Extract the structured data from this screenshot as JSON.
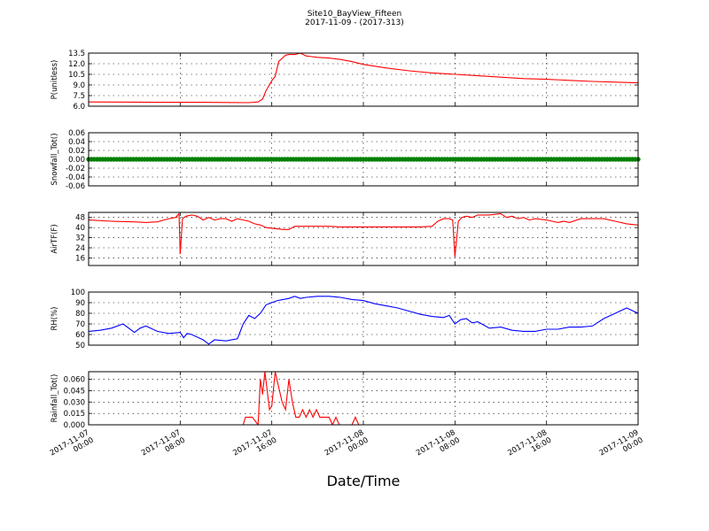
{
  "chart_data": {
    "type": "line",
    "title": "Site10_BayView_Fifteen",
    "subtitle": "2017-11-09 - (2017-313)",
    "xlabel": "Date/Time",
    "x_ticks": [
      {
        "hours": 0,
        "label": [
          "2017-11-07",
          "00:00"
        ]
      },
      {
        "hours": 8,
        "label": [
          "2017-11-07",
          "08:00"
        ]
      },
      {
        "hours": 16,
        "label": [
          "2017-11-07",
          "16:00"
        ]
      },
      {
        "hours": 24,
        "label": [
          "2017-11-08",
          "00:00"
        ]
      },
      {
        "hours": 32,
        "label": [
          "2017-11-08",
          "08:00"
        ]
      },
      {
        "hours": 40,
        "label": [
          "2017-11-08",
          "16:00"
        ]
      },
      {
        "hours": 48,
        "label": [
          "2017-11-09",
          "00:00"
        ]
      }
    ],
    "xlim": [
      "2017-11-07 00:00",
      "2017-11-09 00:00"
    ],
    "grid": true,
    "panels": [
      {
        "id": "p",
        "ylabel": "P(unitless)",
        "color": "#ff0000",
        "ylim": [
          6.0,
          13.5
        ],
        "yticks": [
          6.0,
          7.5,
          9.0,
          10.5,
          12.0,
          13.5
        ],
        "tick_decimals": 1,
        "x": [
          0,
          6,
          10,
          14,
          14.8,
          15.2,
          15.5,
          16,
          16.3,
          16.6,
          17.2,
          17.5,
          18,
          18.5,
          19,
          19.5,
          20,
          21,
          22,
          23,
          24,
          26,
          28,
          30,
          32,
          34,
          36,
          38,
          40,
          42,
          44,
          46,
          48
        ],
        "y": [
          6.6,
          6.55,
          6.55,
          6.5,
          6.6,
          7.0,
          8.2,
          9.6,
          10.2,
          12.3,
          13.2,
          13.3,
          13.3,
          13.5,
          13.1,
          13.0,
          12.9,
          12.8,
          12.6,
          12.3,
          11.9,
          11.4,
          11.0,
          10.7,
          10.5,
          10.3,
          10.1,
          9.9,
          9.8,
          9.65,
          9.5,
          9.4,
          9.3
        ]
      },
      {
        "id": "snow",
        "ylabel": "Snowfall_Tot()",
        "color": "#008000",
        "ylim": [
          -0.06,
          0.06
        ],
        "yticks": [
          -0.06,
          -0.04,
          -0.02,
          0.0,
          0.02,
          0.04,
          0.06
        ],
        "tick_decimals": 2,
        "markers": true,
        "x": [
          0,
          48
        ],
        "y": [
          0.0,
          0.0
        ]
      },
      {
        "id": "air",
        "ylabel": "AirTF(F)",
        "color": "#ff0000",
        "ylim": [
          10,
          52
        ],
        "yticks": [
          16,
          24,
          32,
          40,
          48
        ],
        "tick_decimals": 0,
        "x": [
          0,
          2,
          4,
          5,
          6,
          7,
          7.6,
          7.9,
          8.0,
          8.2,
          8.5,
          9,
          9.5,
          10,
          10.5,
          11,
          11.5,
          12,
          12.5,
          13,
          13.5,
          14,
          14.5,
          15,
          15.5,
          16,
          16.5,
          17,
          17.5,
          18,
          19,
          20,
          21,
          22,
          23,
          24,
          25,
          26,
          27,
          28,
          29,
          30,
          30.5,
          31,
          31.5,
          31.8,
          32.0,
          32.3,
          32.6,
          33,
          33.5,
          34,
          35,
          36,
          36.5,
          37,
          37.5,
          38,
          38.5,
          39,
          40,
          40.5,
          41,
          41.5,
          42,
          43,
          44,
          45,
          46,
          47,
          48
        ],
        "y": [
          46,
          45,
          44.5,
          44,
          44.5,
          47,
          48,
          51,
          19,
          47,
          49,
          50,
          49,
          46,
          48,
          46,
          47,
          47,
          45,
          47,
          46,
          45,
          43,
          42,
          40,
          39.5,
          39,
          38.5,
          38.5,
          41,
          41,
          41,
          41,
          40.5,
          40.5,
          40.5,
          40.5,
          40.5,
          40.5,
          40.5,
          40.5,
          41,
          45,
          47,
          47,
          46,
          17,
          45,
          48,
          49,
          48,
          50,
          50,
          51,
          48,
          49,
          47,
          48,
          46,
          47,
          46,
          45,
          44,
          45,
          44,
          47,
          47,
          47,
          45,
          43,
          42
        ]
      },
      {
        "id": "rh",
        "ylabel": "RH(%)",
        "color": "#0000ff",
        "ylim": [
          50,
          100
        ],
        "yticks": [
          50,
          60,
          70,
          80,
          90,
          100
        ],
        "tick_decimals": 0,
        "x": [
          0,
          1,
          2,
          3,
          4,
          4.5,
          5,
          6,
          7,
          8,
          8.3,
          8.6,
          9,
          10,
          10.5,
          11,
          12,
          13,
          13.5,
          14,
          14.5,
          15,
          15.5,
          16,
          16.5,
          17,
          17.5,
          18,
          18.5,
          19,
          20,
          21,
          22,
          23,
          24,
          25,
          26,
          27,
          28,
          29,
          30,
          31,
          31.5,
          32,
          32.5,
          33,
          33.5,
          34,
          35,
          36,
          37,
          38,
          39,
          40,
          41,
          42,
          43,
          44,
          45,
          46,
          47,
          48
        ],
        "y": [
          63,
          64,
          66,
          70,
          62,
          66,
          68,
          63,
          61,
          62,
          57,
          61,
          60,
          55,
          51,
          55,
          54,
          56,
          70,
          78,
          75,
          80,
          88,
          90,
          92,
          93,
          94,
          96,
          94,
          95,
          96,
          96,
          95,
          93,
          92,
          89,
          87,
          85,
          82,
          79,
          77,
          76,
          78,
          70,
          74,
          75,
          71,
          72,
          66,
          67,
          64,
          63,
          63,
          65,
          65,
          67,
          67,
          68,
          75,
          80,
          85,
          80
        ]
      },
      {
        "id": "rain",
        "ylabel": "Rainfall_Tot()",
        "color": "#ff0000",
        "ylim": [
          0.0,
          0.07
        ],
        "yticks": [
          0.0,
          0.015,
          0.03,
          0.045,
          0.06
        ],
        "tick_decimals": 3,
        "x": [
          0,
          13.5,
          13.7,
          14.3,
          14.8,
          15.0,
          15.2,
          15.4,
          15.6,
          15.8,
          16.0,
          16.3,
          16.6,
          16.9,
          17.2,
          17.5,
          17.8,
          18.1,
          18.4,
          18.7,
          19.0,
          19.3,
          19.6,
          19.9,
          20.2,
          21.0,
          21.3,
          21.6,
          21.9,
          22.5,
          23.0,
          23.3,
          23.6,
          48
        ],
        "y": [
          0,
          0,
          0.01,
          0.01,
          0.0,
          0.06,
          0.04,
          0.07,
          0.045,
          0.02,
          0.025,
          0.07,
          0.05,
          0.03,
          0.02,
          0.06,
          0.03,
          0.01,
          0.01,
          0.02,
          0.01,
          0.02,
          0.01,
          0.02,
          0.01,
          0.01,
          0.0,
          0.01,
          0.0,
          0.0,
          0.0,
          0.01,
          0.0,
          0
        ]
      }
    ]
  }
}
